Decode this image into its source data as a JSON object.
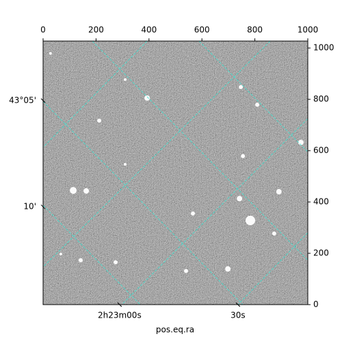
{
  "chart_data": {
    "type": "image",
    "xlabel": "pos.eq.ra",
    "xlim": [
      0,
      1000
    ],
    "ylim": [
      0,
      1027
    ],
    "xticks": [
      0,
      200,
      400,
      600,
      800,
      1000
    ],
    "yticks": [
      0,
      200,
      400,
      600,
      800,
      1000
    ],
    "ra_ticks": [
      {
        "value": 289,
        "label": "2h23m00s"
      },
      {
        "value": 736,
        "label": "30s"
      }
    ],
    "dec_ticks": [
      {
        "value": 795,
        "label": "43°05'"
      },
      {
        "value": 381,
        "label": "10'"
      }
    ],
    "grid_color": "#40e0d0",
    "grid_lines": [
      {
        "x": [
          0,
          754
        ],
        "y": [
          792,
          0
        ]
      },
      {
        "x": [
          186,
          1000
        ],
        "y": [
          1027,
          173
        ]
      },
      {
        "x": [
          589,
          1000
        ],
        "y": [
          1027,
          595
        ]
      },
      {
        "x": [
          0,
          367
        ],
        "y": [
          387,
          0
        ]
      },
      {
        "x": [
          393,
          0
        ],
        "y": [
          1027,
          613
        ]
      },
      {
        "x": [
          858,
          0
        ],
        "y": [
          1027,
          147
        ]
      },
      {
        "x": [
          1000,
          297
        ],
        "y": [
          725,
          0
        ]
      },
      {
        "x": [
          1000,
          736
        ],
        "y": [
          280,
          0
        ]
      }
    ],
    "sources": {
      "x": [
        114,
        163,
        393,
        212,
        783,
        742,
        891,
        755,
        809,
        747,
        310,
        566,
        873,
        698,
        540,
        274,
        142,
        67,
        974,
        310,
        28
      ],
      "y": [
        445,
        443,
        805,
        717,
        328,
        413,
        440,
        579,
        779,
        848,
        877,
        355,
        277,
        139,
        131,
        165,
        173,
        197,
        632,
        547,
        979
      ],
      "size": [
        5,
        4,
        4,
        3,
        7,
        4,
        4,
        3,
        3,
        3,
        2,
        3,
        3,
        4,
        3,
        3,
        3,
        2,
        4,
        2,
        2
      ]
    }
  }
}
